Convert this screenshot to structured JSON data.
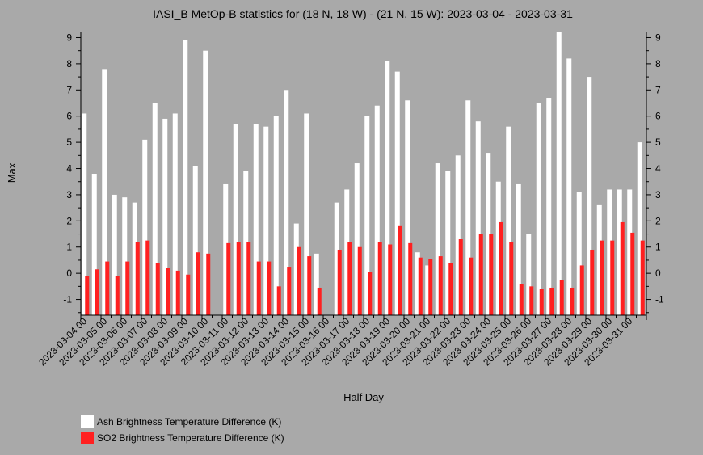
{
  "chart_data": {
    "type": "bar",
    "title": "IASI_B MetOp-B statistics for (18 N, 18 W) - (21 N, 15 W): 2023-03-04 - 2023-03-31",
    "xlabel": "Half Day",
    "ylabel": "Max",
    "ylim": [
      -1.6,
      9.2
    ],
    "yticks": [
      "9",
      "8",
      "7",
      "6",
      "5",
      "4",
      "3",
      "2",
      "1",
      "0",
      "-1"
    ],
    "ytick_values": [
      9,
      8,
      7,
      6,
      5,
      4,
      3,
      2,
      1,
      0,
      -1
    ],
    "xtick_labels": [
      "2023-03-04 00",
      "2023-03-05 00",
      "2023-03-06 00",
      "2023-03-07 00",
      "2023-03-08 00",
      "2023-03-09 00",
      "2023-03-10 00",
      "2023-03-11 00",
      "2023-03-12 00",
      "2023-03-13 00",
      "2023-03-14 00",
      "2023-03-15 00",
      "2023-03-16 00",
      "2023-03-17 00",
      "2023-03-18 00",
      "2023-03-19 00",
      "2023-03-20 00",
      "2023-03-21 00",
      "2023-03-22 00",
      "2023-03-23 00",
      "2023-03-24 00",
      "2023-03-25 00",
      "2023-03-26 00",
      "2023-03-27 00",
      "2023-03-28 00",
      "2023-03-29 00",
      "2023-03-30 00",
      "2023-03-31 00"
    ],
    "grid": false,
    "legend_position": "bottom-left",
    "series": [
      {
        "name": "Ash Brightness Temperature Difference (K)",
        "color": "#ffffff",
        "values": [
          6.1,
          3.8,
          7.8,
          3.0,
          2.9,
          2.7,
          5.1,
          6.5,
          5.9,
          6.1,
          8.9,
          4.1,
          8.5,
          null,
          3.4,
          5.7,
          3.9,
          5.7,
          5.6,
          6.0,
          7.0,
          1.9,
          6.1,
          0.75,
          null,
          2.7,
          3.2,
          4.2,
          6.0,
          6.4,
          8.1,
          7.7,
          6.6,
          0.8,
          0.3,
          4.2,
          3.9,
          4.5,
          6.6,
          5.8,
          4.6,
          3.5,
          5.6,
          3.4,
          1.5,
          6.5,
          6.7,
          9.2,
          8.2,
          3.1,
          7.5,
          2.6,
          3.2,
          3.2,
          3.2,
          5.0
        ]
      },
      {
        "name": "SO2 Brightness Temperature Difference (K)",
        "color": "#ff2020",
        "values": [
          -0.1,
          0.15,
          0.45,
          -0.1,
          0.45,
          1.2,
          1.25,
          0.4,
          0.2,
          0.1,
          -0.05,
          0.8,
          0.75,
          null,
          1.15,
          1.2,
          1.2,
          0.45,
          0.45,
          -0.5,
          0.25,
          1.0,
          0.65,
          -0.55,
          null,
          0.9,
          1.2,
          1.0,
          0.05,
          1.2,
          1.1,
          1.8,
          1.15,
          0.6,
          0.55,
          0.65,
          0.4,
          1.3,
          0.6,
          1.5,
          1.5,
          1.95,
          1.2,
          -0.4,
          -0.5,
          -0.6,
          -0.55,
          -0.25,
          -0.55,
          0.3,
          0.9,
          1.25,
          1.25,
          1.95,
          1.55,
          1.25
        ]
      }
    ]
  }
}
